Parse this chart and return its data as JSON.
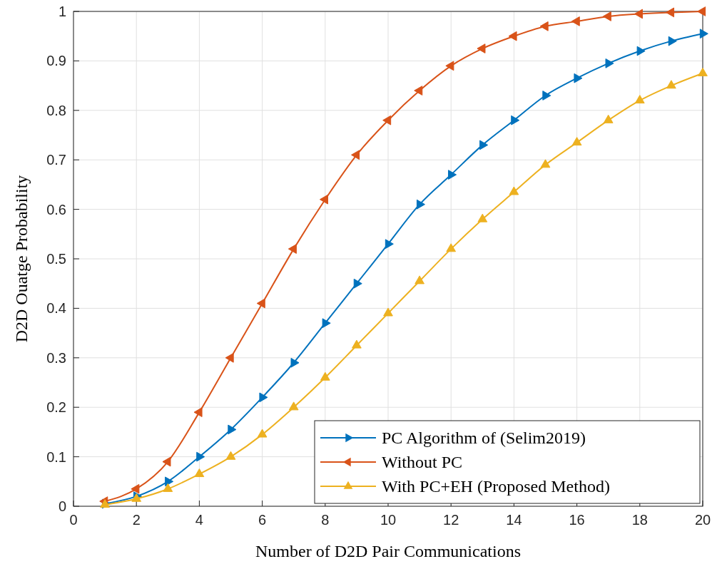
{
  "chart_data": {
    "type": "line",
    "xlabel": "Number of D2D Pair Communications",
    "ylabel": "D2D Ouatge Probability",
    "x": [
      1,
      2,
      3,
      4,
      5,
      6,
      7,
      8,
      9,
      10,
      11,
      12,
      13,
      14,
      15,
      16,
      17,
      18,
      19,
      20
    ],
    "series": [
      {
        "name": "PC Algorithm of (Selim2019)",
        "color": "#0072bd",
        "values": [
          0.005,
          0.02,
          0.05,
          0.1,
          0.155,
          0.22,
          0.29,
          0.37,
          0.45,
          0.53,
          0.61,
          0.67,
          0.73,
          0.78,
          0.83,
          0.865,
          0.895,
          0.92,
          0.94,
          0.955
        ]
      },
      {
        "name": "Without PC",
        "color": "#d95319",
        "values": [
          0.01,
          0.035,
          0.09,
          0.19,
          0.3,
          0.41,
          0.52,
          0.62,
          0.71,
          0.78,
          0.84,
          0.89,
          0.925,
          0.95,
          0.97,
          0.98,
          0.99,
          0.995,
          0.998,
          1.0
        ]
      },
      {
        "name": "With PC+EH (Proposed Method)",
        "color": "#edb120",
        "values": [
          0.003,
          0.015,
          0.035,
          0.065,
          0.1,
          0.145,
          0.2,
          0.26,
          0.325,
          0.39,
          0.455,
          0.52,
          0.58,
          0.635,
          0.69,
          0.735,
          0.78,
          0.82,
          0.85,
          0.875
        ]
      }
    ],
    "xlim": [
      0,
      20
    ],
    "xticks": [
      0,
      2,
      4,
      6,
      8,
      10,
      12,
      14,
      16,
      18,
      20
    ],
    "ylim": [
      0,
      1
    ],
    "yticks": [
      0,
      0.1,
      0.2,
      0.3,
      0.4,
      0.5,
      0.6,
      0.7,
      0.8,
      0.9,
      1
    ],
    "grid": true,
    "legend": "bottom right",
    "marker": "triangle",
    "line_style": "solid"
  }
}
